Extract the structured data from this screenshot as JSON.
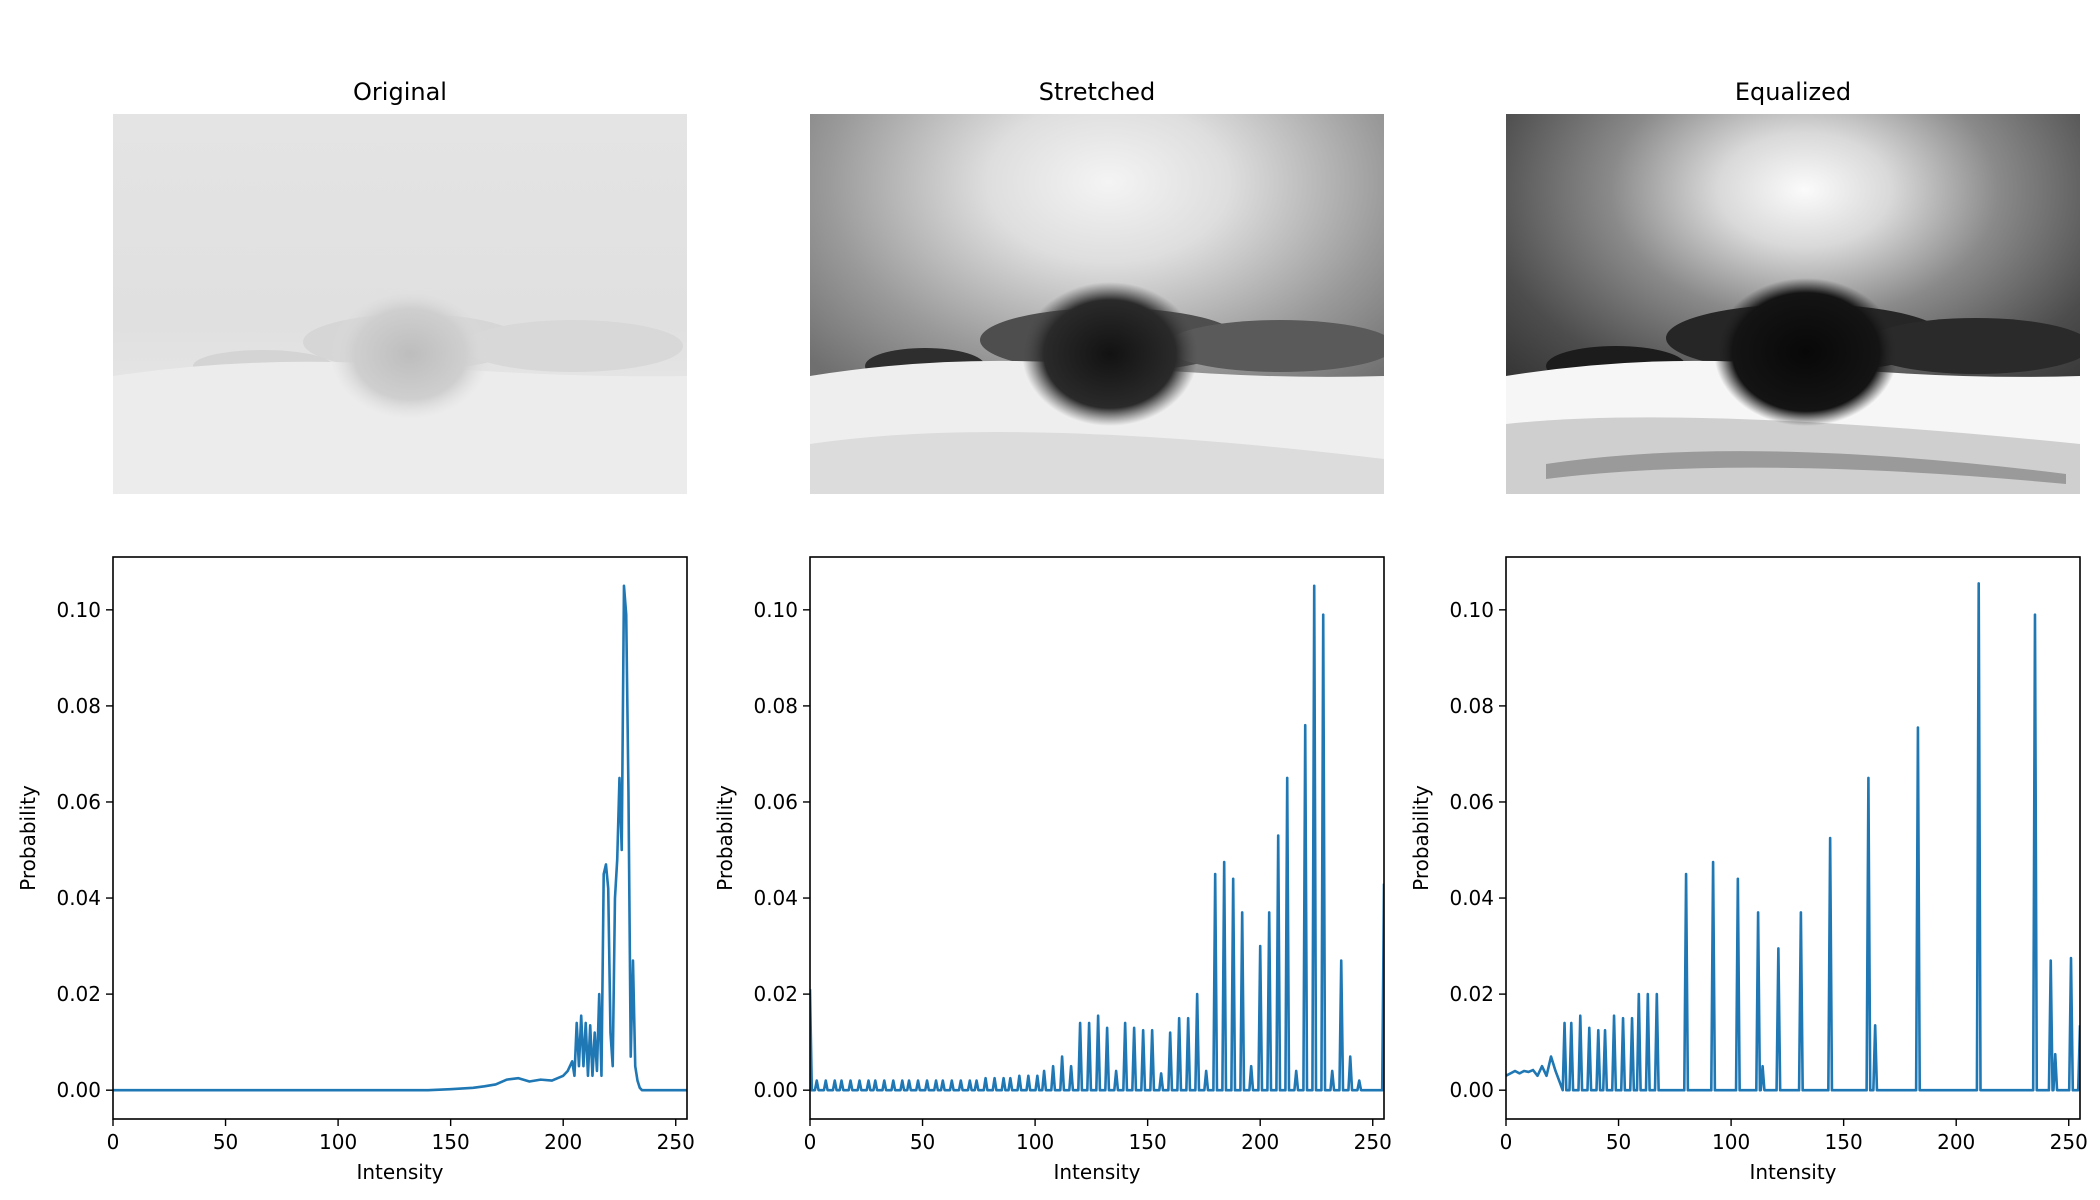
{
  "panels": [
    {
      "title": "Original"
    },
    {
      "title": "Stretched"
    },
    {
      "title": "Equalized"
    }
  ],
  "images": [
    {
      "scene": "foggy snowy field with lone frosted bush",
      "variant": "original"
    },
    {
      "scene": "foggy snowy field with lone frosted bush",
      "variant": "contrast-stretched"
    },
    {
      "scene": "foggy snowy field with lone frosted bush",
      "variant": "histogram-equalized"
    }
  ],
  "chart_data": [
    {
      "type": "line",
      "xlabel": "Intensity",
      "ylabel": "Probability",
      "xlim": [
        0,
        255
      ],
      "ylim": [
        -0.006,
        0.111
      ],
      "xticks": [
        0,
        50,
        100,
        150,
        200,
        250
      ],
      "yticks": [
        0.0,
        0.02,
        0.04,
        0.06,
        0.08,
        0.1
      ],
      "ytick_labels": [
        "0.00",
        "0.02",
        "0.04",
        "0.06",
        "0.08",
        "0.10"
      ],
      "grid": false,
      "color": "#1f77b4",
      "series": [
        {
          "x": [
            0,
            140,
            150,
            160,
            165,
            170,
            175,
            180,
            185,
            190,
            195,
            200,
            202,
            204,
            205,
            206,
            207,
            208,
            209,
            210,
            211,
            212,
            213,
            214,
            215,
            216,
            217,
            218,
            219,
            220,
            221,
            222,
            223,
            224,
            225,
            226,
            227,
            228,
            229,
            230,
            231,
            232,
            233,
            234,
            235,
            236,
            237,
            238,
            239,
            240,
            255
          ],
          "y": [
            0,
            0,
            0.0002,
            0.0005,
            0.0008,
            0.0012,
            0.0022,
            0.0025,
            0.0018,
            0.0022,
            0.002,
            0.003,
            0.004,
            0.006,
            0.003,
            0.014,
            0.005,
            0.0155,
            0.005,
            0.014,
            0.003,
            0.0135,
            0.003,
            0.012,
            0.004,
            0.02,
            0.003,
            0.045,
            0.047,
            0.042,
            0.012,
            0.005,
            0.04,
            0.048,
            0.065,
            0.05,
            0.105,
            0.099,
            0.062,
            0.007,
            0.027,
            0.005,
            0.002,
            0.0005,
            0,
            0,
            0,
            0,
            0,
            0,
            0
          ]
        }
      ]
    },
    {
      "type": "line",
      "xlabel": "Intensity",
      "ylabel": "Probability",
      "xlim": [
        0,
        255
      ],
      "ylim": [
        -0.006,
        0.111
      ],
      "xticks": [
        0,
        50,
        100,
        150,
        200,
        250
      ],
      "yticks": [
        0.0,
        0.02,
        0.04,
        0.06,
        0.08,
        0.1
      ],
      "ytick_labels": [
        "0.00",
        "0.02",
        "0.04",
        "0.06",
        "0.08",
        "0.10"
      ],
      "grid": false,
      "color": "#1f77b4",
      "spikes": {
        "x": [
          0,
          3,
          7,
          11,
          14,
          18,
          22,
          26,
          29,
          33,
          37,
          41,
          44,
          48,
          52,
          56,
          59,
          63,
          67,
          71,
          74,
          78,
          82,
          86,
          89,
          93,
          97,
          101,
          104,
          108,
          112,
          116,
          120,
          124,
          128,
          132,
          136,
          140,
          144,
          148,
          152,
          156,
          160,
          164,
          168,
          172,
          176,
          180,
          184,
          188,
          192,
          196,
          200,
          204,
          208,
          212,
          216,
          220,
          224,
          228,
          232,
          236,
          240,
          244,
          248,
          252,
          255
        ],
        "y": [
          0.021,
          0.002,
          0.002,
          0.002,
          0.002,
          0.002,
          0.002,
          0.002,
          0.002,
          0.002,
          0.002,
          0.002,
          0.002,
          0.002,
          0.002,
          0.002,
          0.002,
          0.002,
          0.002,
          0.002,
          0.002,
          0.0025,
          0.0025,
          0.0025,
          0.0025,
          0.003,
          0.003,
          0.003,
          0.004,
          0.005,
          0.007,
          0.005,
          0.014,
          0.014,
          0.0155,
          0.013,
          0.004,
          0.014,
          0.013,
          0.0125,
          0.0125,
          0.0035,
          0.012,
          0.015,
          0.015,
          0.02,
          0.004,
          0.045,
          0.0475,
          0.044,
          0.037,
          0.005,
          0.03,
          0.037,
          0.053,
          0.065,
          0.004,
          0.076,
          0.105,
          0.099,
          0.004,
          0.027,
          0.007,
          0.002,
          0.0,
          0.0,
          0.043
        ]
      }
    },
    {
      "type": "line",
      "xlabel": "Intensity",
      "ylabel": "Probability",
      "xlim": [
        0,
        255
      ],
      "ylim": [
        -0.006,
        0.111
      ],
      "xticks": [
        0,
        50,
        100,
        150,
        200,
        250
      ],
      "yticks": [
        0.0,
        0.02,
        0.04,
        0.06,
        0.08,
        0.1
      ],
      "ytick_labels": [
        "0.00",
        "0.02",
        "0.04",
        "0.06",
        "0.08",
        "0.10"
      ],
      "grid": false,
      "color": "#1f77b4",
      "noise_start": {
        "x": [
          0,
          2,
          4,
          6,
          8,
          10,
          12,
          14,
          16,
          18,
          20,
          22
        ],
        "y": [
          0.003,
          0.0035,
          0.004,
          0.0035,
          0.004,
          0.0038,
          0.0042,
          0.003,
          0.005,
          0.003,
          0.007,
          0.004
        ]
      },
      "spikes": {
        "x": [
          26,
          29,
          33,
          37,
          41,
          44,
          48,
          52,
          56,
          59,
          63,
          67,
          80,
          92,
          103,
          112,
          114,
          121,
          131,
          144,
          161,
          164,
          183,
          210,
          235,
          242,
          244,
          251,
          255
        ],
        "y": [
          0.014,
          0.014,
          0.0155,
          0.013,
          0.0125,
          0.0125,
          0.0155,
          0.015,
          0.015,
          0.02,
          0.02,
          0.02,
          0.045,
          0.0475,
          0.044,
          0.037,
          0.005,
          0.0295,
          0.037,
          0.0525,
          0.065,
          0.0135,
          0.0755,
          0.1055,
          0.099,
          0.027,
          0.0075,
          0.0275,
          0.0135
        ]
      }
    }
  ]
}
